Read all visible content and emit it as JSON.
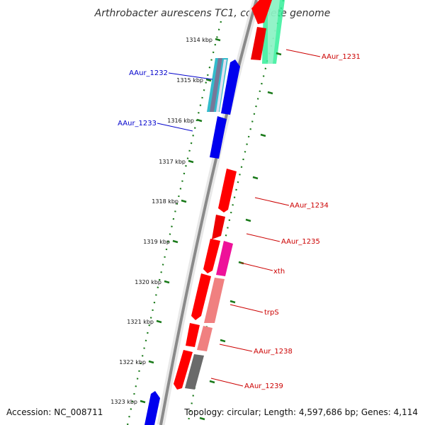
{
  "title": "Arthrobacter aurescens TC1, complete genome",
  "footer": {
    "accession": "Accession: NC_008711",
    "topology": "Topology: circular; Length: 4,597,686 bp; Genes: 4,114"
  },
  "colors": {
    "backbone": "#808080",
    "tick": "#1a7a1a",
    "forward_label": "#cc0000",
    "reverse_label": "#0000cc"
  },
  "ticks": [
    {
      "label": "1314 kbp"
    },
    {
      "label": "1315 kbp"
    },
    {
      "label": "1316 kbp"
    },
    {
      "label": "1317 kbp"
    },
    {
      "label": "1318 kbp"
    },
    {
      "label": "1319 kbp"
    },
    {
      "label": "1320 kbp"
    },
    {
      "label": "1321 kbp"
    },
    {
      "label": "1322 kbp"
    },
    {
      "label": "1323 kbp"
    }
  ],
  "gene_labels": [
    {
      "text": "AAur_1231",
      "strand": "forward"
    },
    {
      "text": "AAur_1232",
      "strand": "reverse"
    },
    {
      "text": "AAur_1233",
      "strand": "reverse"
    },
    {
      "text": "AAur_1234",
      "strand": "forward"
    },
    {
      "text": "AAur_1235",
      "strand": "forward"
    },
    {
      "text": "xth",
      "strand": "forward"
    },
    {
      "text": "trpS",
      "strand": "forward"
    },
    {
      "text": "AAur_1238",
      "strand": "forward"
    },
    {
      "text": "AAur_1239",
      "strand": "forward"
    }
  ]
}
